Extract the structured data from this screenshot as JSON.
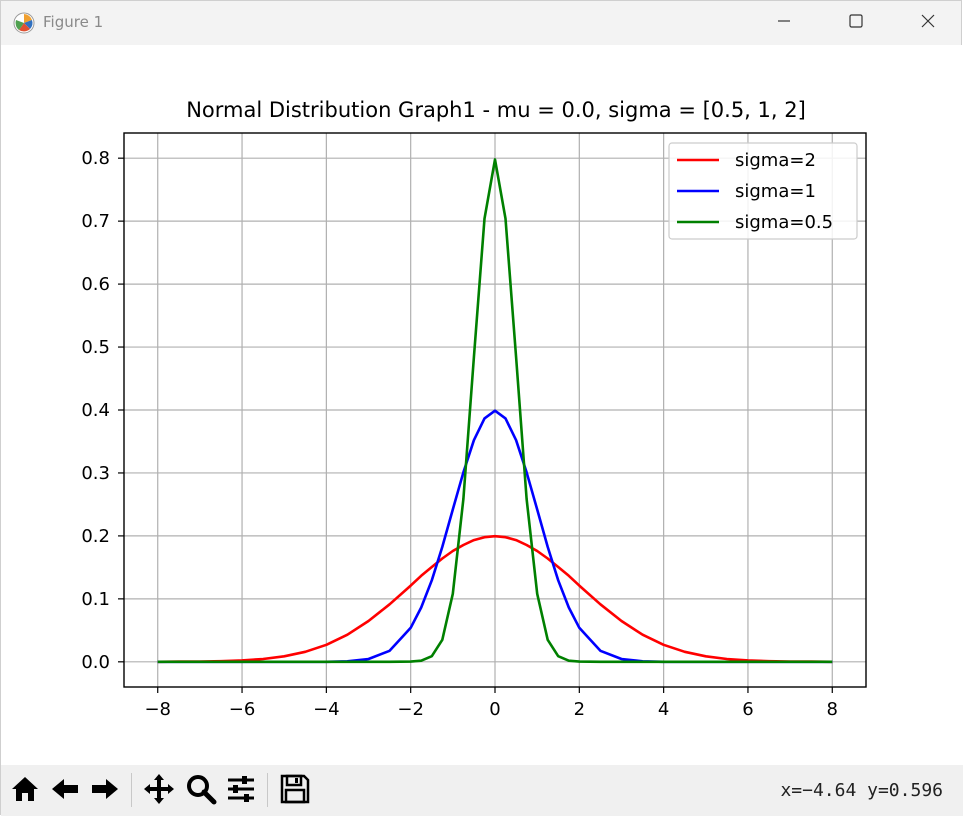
{
  "window": {
    "title": "Figure 1",
    "icon": "matplotlib-icon",
    "controls": [
      "minimize-icon",
      "maximize-icon",
      "close-icon"
    ]
  },
  "toolbar": {
    "tools": [
      "home-icon",
      "back-arrow-icon",
      "forward-arrow-icon",
      "pan-move-icon",
      "zoom-magnifier-icon",
      "configure-subplots-icon",
      "save-icon"
    ],
    "coords": "x=−4.64 y=0.596"
  },
  "chart_data": {
    "type": "line",
    "title": "Normal Distribution Graph1 - mu = 0.0, sigma = [0.5, 1, 2]",
    "xlabel": "",
    "ylabel": "",
    "xlim": [
      -8.8,
      8.8
    ],
    "ylim": [
      -0.04,
      0.84
    ],
    "xticks": [
      -8,
      -6,
      -4,
      -2,
      0,
      2,
      4,
      6,
      8
    ],
    "yticks": [
      0.0,
      0.1,
      0.2,
      0.3,
      0.4,
      0.5,
      0.6,
      0.7,
      0.8
    ],
    "grid": true,
    "legend_position": "upper right",
    "x": [
      -8,
      -7.5,
      -7,
      -6.5,
      -6,
      -5.5,
      -5,
      -4.5,
      -4,
      -3.5,
      -3,
      -2.5,
      -2,
      -1.75,
      -1.5,
      -1.25,
      -1,
      -0.75,
      -0.5,
      -0.25,
      0,
      0.25,
      0.5,
      0.75,
      1,
      1.25,
      1.5,
      1.75,
      2,
      2.5,
      3,
      3.5,
      4,
      4.5,
      5,
      5.5,
      6,
      6.5,
      7,
      7.5,
      8
    ],
    "series": [
      {
        "name": "sigma=2",
        "color": "#ff0000",
        "values": [
          0.0001,
          0.0003,
          0.0004,
          0.001,
          0.0022,
          0.0045,
          0.0088,
          0.0159,
          0.027,
          0.0431,
          0.0648,
          0.0913,
          0.121,
          0.1367,
          0.1506,
          0.1641,
          0.176,
          0.1856,
          0.1933,
          0.1979,
          0.1995,
          0.1979,
          0.1933,
          0.1856,
          0.176,
          0.1641,
          0.1506,
          0.1367,
          0.121,
          0.0913,
          0.0648,
          0.0431,
          0.027,
          0.0159,
          0.0088,
          0.0045,
          0.0022,
          0.001,
          0.0004,
          0.0003,
          0.0001
        ]
      },
      {
        "name": "sigma=1",
        "color": "#0000ff",
        "values": [
          0.0,
          0.0,
          0.0,
          0.0,
          0.0,
          0.0,
          0.0,
          0.0,
          0.0001,
          0.0009,
          0.0044,
          0.0175,
          0.054,
          0.0863,
          0.1295,
          0.1826,
          0.242,
          0.3011,
          0.3521,
          0.3867,
          0.3989,
          0.3867,
          0.3521,
          0.3011,
          0.242,
          0.1826,
          0.1295,
          0.0863,
          0.054,
          0.0175,
          0.0044,
          0.0009,
          0.0001,
          0.0,
          0.0,
          0.0,
          0.0,
          0.0,
          0.0,
          0.0,
          0.0
        ]
      },
      {
        "name": "sigma=0.5",
        "color": "#008000",
        "values": [
          0.0,
          0.0,
          0.0,
          0.0,
          0.0,
          0.0,
          0.0,
          0.0,
          0.0,
          0.0,
          0.0,
          0.0,
          0.0003,
          0.0018,
          0.0089,
          0.035,
          0.108,
          0.259,
          0.4839,
          0.7041,
          0.7979,
          0.7041,
          0.4839,
          0.259,
          0.108,
          0.035,
          0.0089,
          0.0018,
          0.0003,
          0.0,
          0.0,
          0.0,
          0.0,
          0.0,
          0.0,
          0.0,
          0.0,
          0.0,
          0.0,
          0.0,
          0.0
        ]
      }
    ]
  }
}
